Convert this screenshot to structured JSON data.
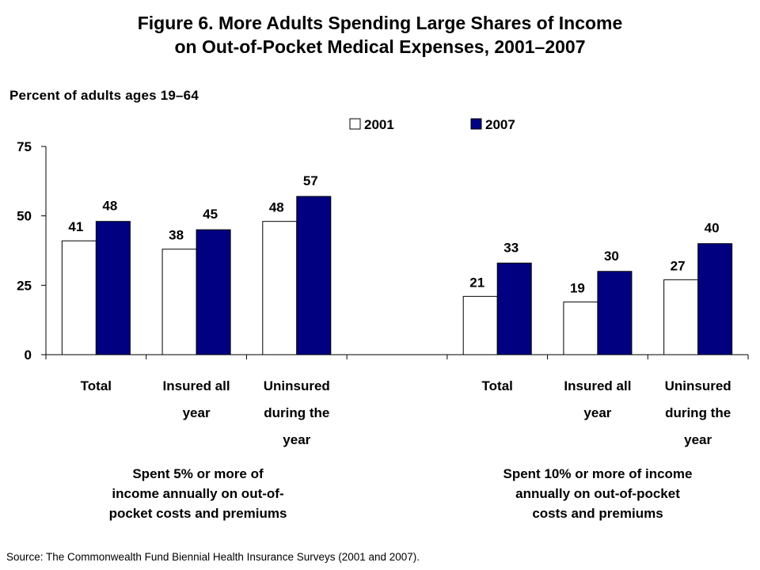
{
  "title_line1": "Figure 6. More Adults Spending Large Shares of Income",
  "title_line2": "on Out-of-Pocket Medical Expenses, 2001–2007",
  "source": "Source: The Commonwealth Fund Biennial Health Insurance Surveys (2001 and 2007).",
  "colors": {
    "series_2001": "#ffffff",
    "series_2007": "#000080",
    "outline": "#000000"
  },
  "chart_data": {
    "type": "bar",
    "ylabel": "Percent of adults ages 19–64",
    "ylim": [
      0,
      75
    ],
    "yticks": [
      0,
      25,
      50,
      75
    ],
    "legend_position": "top-right",
    "categories": [
      [
        "Total"
      ],
      [
        "Insured all",
        "year"
      ],
      [
        "Uninsured",
        "during the",
        "year"
      ],
      [
        "Total"
      ],
      [
        "Insured all",
        "year"
      ],
      [
        "Uninsured",
        "during the",
        "year"
      ]
    ],
    "groups": [
      {
        "label": [
          "Spent 5% or more of",
          "income annually on out-of-",
          "pocket costs and premiums"
        ],
        "categories": [
          0,
          1,
          2
        ]
      },
      {
        "label": [
          "Spent 10% or more of income",
          "annually on out-of-pocket",
          "costs and premiums"
        ],
        "categories": [
          3,
          4,
          5
        ]
      }
    ],
    "series": [
      {
        "name": "2001",
        "values": [
          41,
          38,
          48,
          21,
          19,
          27
        ]
      },
      {
        "name": "2007",
        "values": [
          48,
          45,
          57,
          33,
          30,
          40
        ]
      }
    ]
  }
}
